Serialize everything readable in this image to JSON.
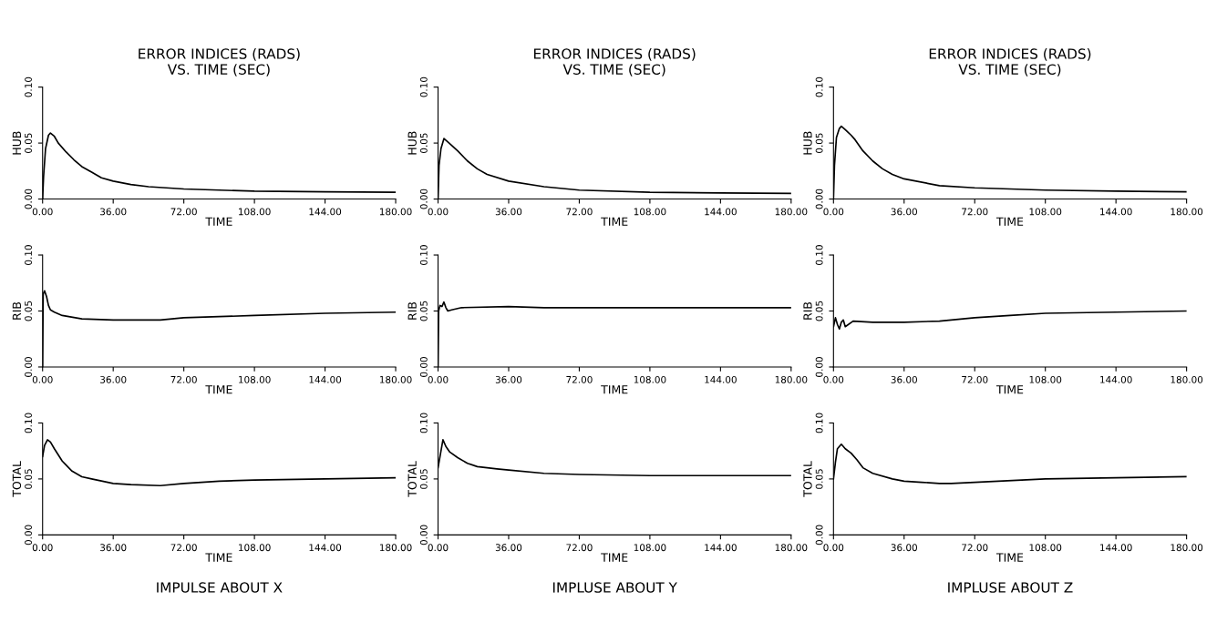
{
  "chart_data": [
    {
      "type": "line",
      "title": "ERROR INDICES (RADS)\nVS. TIME (SEC)",
      "xlabel": "TIME",
      "ylabel": "HUB",
      "xlim": [
        0,
        180
      ],
      "ylim": [
        0,
        0.1
      ],
      "xticks": [
        {
          "value": 0,
          "label": "0.00"
        },
        {
          "value": 36,
          "label": "36.00"
        },
        {
          "value": 72,
          "label": "72.00"
        },
        {
          "value": 108,
          "label": "108.00"
        },
        {
          "value": 144,
          "label": "144.00"
        },
        {
          "value": 180,
          "label": "180.00"
        }
      ],
      "yticks": [
        {
          "value": 0,
          "label": "0.00"
        },
        {
          "value": 0.05,
          "label": "0.05"
        },
        {
          "value": 0.1,
          "label": "0.10"
        }
      ],
      "grid": false,
      "legend": false,
      "series": [
        {
          "color": "#000000",
          "x": [
            0,
            0.5,
            1.5,
            3,
            4,
            6,
            8,
            12,
            16,
            20,
            25,
            30,
            36,
            45,
            54,
            72,
            90,
            108,
            144,
            180
          ],
          "values": [
            0,
            0.02,
            0.045,
            0.057,
            0.059,
            0.056,
            0.05,
            0.042,
            0.035,
            0.029,
            0.024,
            0.019,
            0.016,
            0.013,
            0.011,
            0.009,
            0.008,
            0.007,
            0.0065,
            0.006
          ]
        }
      ]
    },
    {
      "type": "line",
      "title": "ERROR INDICES (RADS)\nVS. TIME (SEC)",
      "xlabel": "TIME",
      "ylabel": "HUB",
      "xlim": [
        0,
        180
      ],
      "ylim": [
        0,
        0.1
      ],
      "xticks": [
        {
          "value": 0,
          "label": "0.00"
        },
        {
          "value": 36,
          "label": "36.00"
        },
        {
          "value": 72,
          "label": "72.00"
        },
        {
          "value": 108,
          "label": "108.00"
        },
        {
          "value": 144,
          "label": "144.00"
        },
        {
          "value": 180,
          "label": "180.00"
        }
      ],
      "yticks": [
        {
          "value": 0,
          "label": "0.00"
        },
        {
          "value": 0.05,
          "label": "0.05"
        },
        {
          "value": 0.1,
          "label": "0.10"
        }
      ],
      "grid": false,
      "legend": false,
      "series": [
        {
          "color": "#000000",
          "x": [
            0,
            0.5,
            1.5,
            3,
            5,
            10,
            15,
            20,
            25,
            36,
            54,
            72,
            108,
            144,
            180
          ],
          "values": [
            0,
            0.03,
            0.045,
            0.054,
            0.051,
            0.043,
            0.034,
            0.027,
            0.022,
            0.016,
            0.011,
            0.008,
            0.006,
            0.0055,
            0.005
          ]
        }
      ]
    },
    {
      "type": "line",
      "title": "ERROR INDICES (RADS)\nVS. TIME (SEC)",
      "xlabel": "TIME",
      "ylabel": "HUB",
      "xlim": [
        0,
        180
      ],
      "ylim": [
        0,
        0.1
      ],
      "xticks": [
        {
          "value": 0,
          "label": "0.00"
        },
        {
          "value": 36,
          "label": "36.00"
        },
        {
          "value": 72,
          "label": "72.00"
        },
        {
          "value": 108,
          "label": "108.00"
        },
        {
          "value": 144,
          "label": "144.00"
        },
        {
          "value": 180,
          "label": "180.00"
        }
      ],
      "yticks": [
        {
          "value": 0,
          "label": "0.00"
        },
        {
          "value": 0.05,
          "label": "0.05"
        },
        {
          "value": 0.1,
          "label": "0.10"
        }
      ],
      "grid": false,
      "legend": false,
      "series": [
        {
          "color": "#000000",
          "x": [
            0,
            0.5,
            1.5,
            3,
            4,
            6,
            9,
            11,
            15,
            20,
            25,
            30,
            36,
            54,
            72,
            108,
            144,
            180
          ],
          "values": [
            0,
            0.03,
            0.055,
            0.063,
            0.065,
            0.062,
            0.057,
            0.053,
            0.043,
            0.034,
            0.027,
            0.022,
            0.018,
            0.012,
            0.01,
            0.008,
            0.007,
            0.0065
          ]
        }
      ]
    },
    {
      "type": "line",
      "xlabel": "TIME",
      "ylabel": "RIB",
      "xlim": [
        0,
        180
      ],
      "ylim": [
        0,
        0.1
      ],
      "xticks": [
        {
          "value": 0,
          "label": "0.00"
        },
        {
          "value": 36,
          "label": "36.00"
        },
        {
          "value": 72,
          "label": "72.00"
        },
        {
          "value": 108,
          "label": "108.00"
        },
        {
          "value": 144,
          "label": "144.00"
        },
        {
          "value": 180,
          "label": "180.00"
        }
      ],
      "yticks": [
        {
          "value": 0,
          "label": "0.00"
        },
        {
          "value": 0.05,
          "label": "0.05"
        },
        {
          "value": 0.1,
          "label": "0.10"
        }
      ],
      "grid": false,
      "legend": false,
      "series": [
        {
          "color": "#000000",
          "x": [
            0,
            0.3,
            1,
            2,
            3,
            4,
            6,
            10,
            20,
            36,
            60,
            72,
            90,
            108,
            144,
            180
          ],
          "values": [
            0,
            0.065,
            0.068,
            0.063,
            0.055,
            0.051,
            0.049,
            0.046,
            0.043,
            0.042,
            0.042,
            0.044,
            0.045,
            0.046,
            0.048,
            0.049
          ]
        }
      ]
    },
    {
      "type": "line",
      "xlabel": "TIME",
      "ylabel": "RIB",
      "xlim": [
        0,
        180
      ],
      "ylim": [
        0,
        0.1
      ],
      "xticks": [
        {
          "value": 0,
          "label": "0.00"
        },
        {
          "value": 36,
          "label": "36.00"
        },
        {
          "value": 72,
          "label": "72.00"
        },
        {
          "value": 108,
          "label": "108.00"
        },
        {
          "value": 144,
          "label": "144.00"
        },
        {
          "value": 180,
          "label": "180.00"
        }
      ],
      "yticks": [
        {
          "value": 0,
          "label": "0.00"
        },
        {
          "value": 0.05,
          "label": "0.05"
        },
        {
          "value": 0.1,
          "label": "0.10"
        }
      ],
      "grid": false,
      "legend": false,
      "series": [
        {
          "color": "#000000",
          "x": [
            0,
            0.3,
            1,
            2,
            3,
            4,
            5,
            7,
            12,
            36,
            54,
            180
          ],
          "values": [
            0,
            0.05,
            0.055,
            0.054,
            0.058,
            0.053,
            0.05,
            0.051,
            0.053,
            0.054,
            0.053,
            0.053
          ]
        }
      ]
    },
    {
      "type": "line",
      "xlabel": "TIME",
      "ylabel": "RIB",
      "xlim": [
        0,
        180
      ],
      "ylim": [
        0,
        0.1
      ],
      "xticks": [
        {
          "value": 0,
          "label": "0.00"
        },
        {
          "value": 36,
          "label": "36.00"
        },
        {
          "value": 72,
          "label": "72.00"
        },
        {
          "value": 108,
          "label": "108.00"
        },
        {
          "value": 144,
          "label": "144.00"
        },
        {
          "value": 180,
          "label": "180.00"
        }
      ],
      "yticks": [
        {
          "value": 0,
          "label": "0.00"
        },
        {
          "value": 0.05,
          "label": "0.05"
        },
        {
          "value": 0.1,
          "label": "0.10"
        }
      ],
      "grid": false,
      "legend": false,
      "series": [
        {
          "color": "#000000",
          "x": [
            0,
            1,
            2,
            3,
            4,
            5,
            6,
            10,
            20,
            36,
            54,
            60,
            72,
            90,
            108,
            144,
            180
          ],
          "values": [
            0.036,
            0.044,
            0.038,
            0.034,
            0.04,
            0.042,
            0.036,
            0.041,
            0.04,
            0.04,
            0.041,
            0.042,
            0.044,
            0.046,
            0.048,
            0.049,
            0.05
          ]
        }
      ]
    },
    {
      "type": "line",
      "xlabel": "TIME",
      "ylabel": "TOTAL",
      "xlim": [
        0,
        180
      ],
      "ylim": [
        0,
        0.1
      ],
      "xticks": [
        {
          "value": 0,
          "label": "0.00"
        },
        {
          "value": 36,
          "label": "36.00"
        },
        {
          "value": 72,
          "label": "72.00"
        },
        {
          "value": 108,
          "label": "108.00"
        },
        {
          "value": 144,
          "label": "144.00"
        },
        {
          "value": 180,
          "label": "180.00"
        }
      ],
      "yticks": [
        {
          "value": 0,
          "label": "0.00"
        },
        {
          "value": 0.05,
          "label": "0.05"
        },
        {
          "value": 0.1,
          "label": "0.10"
        }
      ],
      "grid": false,
      "legend": false,
      "annotations": [
        "IMPULSE ABOUT X"
      ],
      "series": [
        {
          "color": "#000000",
          "x": [
            0,
            1,
            2.5,
            4,
            6,
            10,
            15,
            20,
            25,
            36,
            45,
            60,
            72,
            90,
            108,
            144,
            180
          ],
          "values": [
            0.07,
            0.08,
            0.085,
            0.083,
            0.077,
            0.066,
            0.057,
            0.052,
            0.05,
            0.046,
            0.045,
            0.044,
            0.046,
            0.048,
            0.049,
            0.05,
            0.051
          ]
        }
      ]
    },
    {
      "type": "line",
      "xlabel": "TIME",
      "ylabel": "TOTAL",
      "xlim": [
        0,
        180
      ],
      "ylim": [
        0,
        0.1
      ],
      "xticks": [
        {
          "value": 0,
          "label": "0.00"
        },
        {
          "value": 36,
          "label": "36.00"
        },
        {
          "value": 72,
          "label": "72.00"
        },
        {
          "value": 108,
          "label": "108.00"
        },
        {
          "value": 144,
          "label": "144.00"
        },
        {
          "value": 180,
          "label": "180.00"
        }
      ],
      "yticks": [
        {
          "value": 0,
          "label": "0.00"
        },
        {
          "value": 0.05,
          "label": "0.05"
        },
        {
          "value": 0.1,
          "label": "0.10"
        }
      ],
      "grid": false,
      "legend": false,
      "annotations": [
        "IMPLUSE ABOUT Y"
      ],
      "series": [
        {
          "color": "#000000",
          "x": [
            0,
            1,
            2.5,
            4,
            6,
            10,
            15,
            20,
            30,
            36,
            54,
            72,
            108,
            180
          ],
          "values": [
            0.06,
            0.07,
            0.085,
            0.079,
            0.074,
            0.069,
            0.064,
            0.061,
            0.059,
            0.058,
            0.055,
            0.054,
            0.053,
            0.053
          ]
        }
      ]
    },
    {
      "type": "line",
      "xlabel": "TIME",
      "ylabel": "TOTAL",
      "xlim": [
        0,
        180
      ],
      "ylim": [
        0,
        0.1
      ],
      "xticks": [
        {
          "value": 0,
          "label": "0.00"
        },
        {
          "value": 36,
          "label": "36.00"
        },
        {
          "value": 72,
          "label": "72.00"
        },
        {
          "value": 108,
          "label": "108.00"
        },
        {
          "value": 144,
          "label": "144.00"
        },
        {
          "value": 180,
          "label": "180.00"
        }
      ],
      "yticks": [
        {
          "value": 0,
          "label": "0.00"
        },
        {
          "value": 0.05,
          "label": "0.05"
        },
        {
          "value": 0.1,
          "label": "0.10"
        }
      ],
      "grid": false,
      "legend": false,
      "annotations": [
        "IMPLUSE ABOUT Z"
      ],
      "series": [
        {
          "color": "#000000",
          "x": [
            0,
            1,
            2,
            3,
            4,
            6,
            9,
            12,
            15,
            20,
            30,
            36,
            45,
            54,
            60,
            72,
            108,
            144,
            180
          ],
          "values": [
            0.05,
            0.065,
            0.077,
            0.079,
            0.081,
            0.077,
            0.073,
            0.067,
            0.06,
            0.055,
            0.05,
            0.048,
            0.047,
            0.046,
            0.046,
            0.047,
            0.05,
            0.051,
            0.052
          ]
        }
      ]
    }
  ]
}
